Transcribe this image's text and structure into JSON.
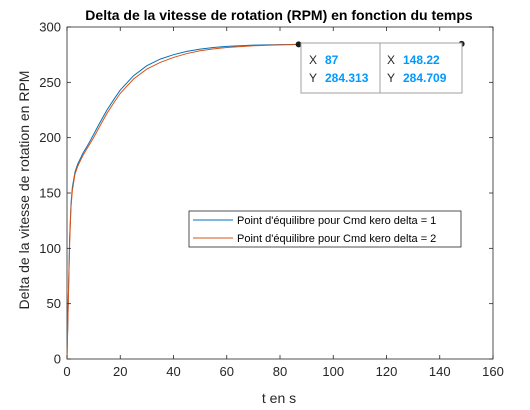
{
  "chart_data": {
    "type": "line",
    "title": "Delta de la vitesse de rotation (RPM) en fonction du temps",
    "xlabel": "t en s",
    "ylabel": "Delta de la vitesse de rotation en RPM",
    "xlim": [
      0,
      160
    ],
    "ylim": [
      0,
      300
    ],
    "xticks": [
      0,
      20,
      40,
      60,
      80,
      100,
      120,
      140,
      160
    ],
    "yticks": [
      0,
      50,
      100,
      150,
      200,
      250,
      300
    ],
    "grid": false,
    "legend_position": "center-right",
    "series": [
      {
        "name": "Point d'équilibre pour Cmd kero delta = 1",
        "color": "#0072bd",
        "x": [
          0,
          0.5,
          1,
          1.5,
          2,
          3,
          4,
          5,
          6,
          8,
          10,
          12,
          15,
          18,
          20,
          25,
          30,
          35,
          40,
          45,
          50,
          55,
          60,
          70,
          80,
          87,
          100,
          120,
          140,
          148.22
        ],
        "y": [
          0,
          55,
          110,
          140,
          155,
          169,
          176,
          181,
          186,
          194,
          203,
          212,
          225,
          236,
          243,
          256,
          265,
          271,
          275,
          278,
          280,
          281.5,
          282.5,
          283.6,
          284.1,
          284.313,
          284.4,
          284.5,
          284.55,
          284.6
        ]
      },
      {
        "name": "Point d'équilibre pour Cmd kero delta = 2",
        "color": "#d95319",
        "x": [
          0,
          0.5,
          1,
          1.5,
          2,
          3,
          4,
          5,
          6,
          8,
          10,
          12,
          15,
          18,
          20,
          25,
          30,
          35,
          40,
          45,
          50,
          55,
          60,
          70,
          80,
          87,
          100,
          120,
          140,
          148.22
        ],
        "y": [
          0,
          53,
          105,
          137,
          152,
          167,
          174,
          179,
          184,
          192,
          200,
          209,
          222,
          233,
          240,
          253,
          262,
          268,
          272.5,
          276,
          278.5,
          280.2,
          281.5,
          283,
          283.9,
          284.2,
          284.5,
          284.65,
          284.7,
          284.709
        ]
      }
    ],
    "datatips": [
      {
        "x_label": "X",
        "x_value": "87",
        "y_label": "Y",
        "y_value": "284.313",
        "x": 87,
        "y": 284.313
      },
      {
        "x_label": "X",
        "x_value": "148.22",
        "y_label": "Y",
        "y_value": "284.709",
        "x": 148.22,
        "y": 284.709
      }
    ]
  }
}
